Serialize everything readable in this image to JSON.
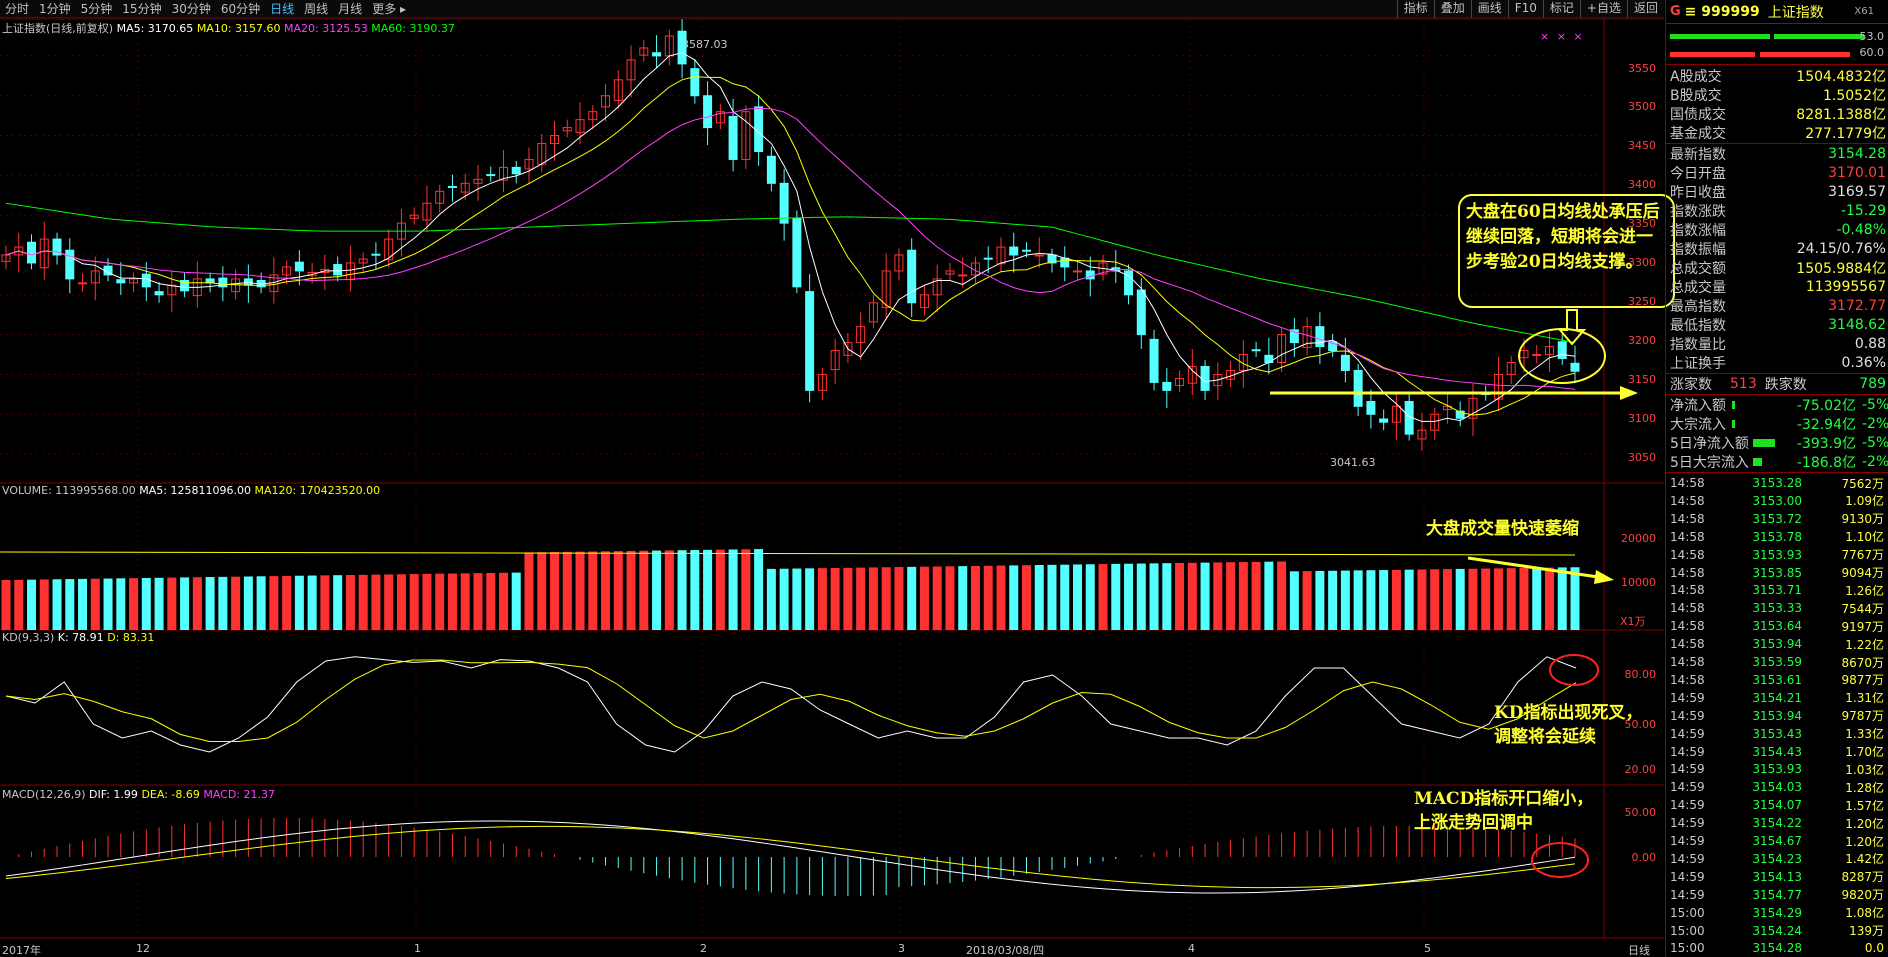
{
  "toolbar": {
    "periods": [
      "分时",
      "1分钟",
      "5分钟",
      "15分钟",
      "30分钟",
      "60分钟",
      "日线",
      "周线",
      "月线",
      "更多 ▸"
    ],
    "active_period": "日线",
    "right_buttons": [
      "指标",
      "叠加",
      "画线",
      "F10",
      "标记",
      "+自选",
      "返回"
    ]
  },
  "main_panel": {
    "title": "上证指数(日线,前复权)",
    "ma5": "MA5: 3170.65",
    "ma10": "MA10: 3157.60",
    "ma20": "MA20: 3125.53",
    "ma60": "MA60: 3190.37",
    "high_label": "3587.03",
    "low_label": "3041.63",
    "y_ticks": [
      "3550",
      "3500",
      "3450",
      "3400",
      "3350",
      "3300",
      "3250",
      "3200",
      "3150",
      "3100",
      "3050"
    ],
    "markers": "× × ×"
  },
  "volume_panel": {
    "title": "VOLUME: 113995568.00",
    "ma5": "MA5: 125811096.00",
    "ma120": "MA120: 170423520.00",
    "y_ticks": [
      "20000",
      "10000"
    ],
    "unit": "X1万"
  },
  "kd_panel": {
    "title": "KD(9,3,3)",
    "k": "K: 78.91",
    "d": "D: 83.31",
    "y_ticks": [
      "80.00",
      "50.00",
      "20.00"
    ]
  },
  "macd_panel": {
    "title": "MACD(12,26,9)",
    "dif": "DIF: 1.99",
    "dea": "DEA: -8.69",
    "macd": "MACD: 21.37",
    "y_ticks": [
      "50.00",
      "0.00"
    ]
  },
  "x_axis": {
    "labels": [
      "2017年",
      "12",
      "1",
      "2",
      "3",
      "2018/03/08/四",
      "4",
      "5"
    ],
    "corner": "日线"
  },
  "annotations": {
    "callout": "大盘在60日均线处承压后继续回落，短期将会进一步考验20日均线支撑。",
    "volume": "大盘成交量快速萎缩",
    "kd_line1": "KD指标出现死叉，",
    "kd_line2": "调整将会延续",
    "macd_line1": "MACD指标开口缩小，",
    "macd_line2": "上涨走势回调中"
  },
  "sidebar": {
    "g": "G",
    "code": "≡ 999999",
    "name": "上证指数",
    "x61": "X61",
    "ratio1": "53.0",
    "ratio2": "60.0",
    "rows": [
      {
        "label": "A股成交",
        "value": "1504.4832亿",
        "color": "#ffff40"
      },
      {
        "label": "B股成交",
        "value": "1.5052亿",
        "color": "#ffff40"
      },
      {
        "label": "国债成交",
        "value": "8281.1388亿",
        "color": "#ffff40"
      },
      {
        "label": "基金成交",
        "value": "277.1779亿",
        "color": "#ffff40"
      },
      {
        "label": "最新指数",
        "value": "3154.28",
        "color": "#20ff40"
      },
      {
        "label": "今日开盘",
        "value": "3170.01",
        "color": "#ff4040"
      },
      {
        "label": "昨日收盘",
        "value": "3169.57",
        "color": "#e0e0e0"
      },
      {
        "label": "指数涨跌",
        "value": "-15.29",
        "color": "#20ff40"
      },
      {
        "label": "指数涨幅",
        "value": "-0.48%",
        "color": "#20ff40"
      },
      {
        "label": "指数振幅",
        "value": "24.15/0.76%",
        "color": "#e0e0e0"
      },
      {
        "label": "总成交额",
        "value": "1505.9884亿",
        "color": "#ffff40"
      },
      {
        "label": "总成交量",
        "value": "113995567",
        "color": "#ffff40"
      },
      {
        "label": "最高指数",
        "value": "3172.77",
        "color": "#ff4040"
      },
      {
        "label": "最低指数",
        "value": "3148.62",
        "color": "#20ff40"
      },
      {
        "label": "指数量比",
        "value": "0.88",
        "color": "#e0e0e0"
      },
      {
        "label": "上证换手",
        "value": "0.36%",
        "color": "#e0e0e0"
      }
    ],
    "up_label": "涨家数",
    "up_value": "513",
    "down_label": "跌家数",
    "down_value": "789",
    "flows": [
      {
        "label": "净流入额",
        "value": "-75.02亿",
        "pct": "-5%"
      },
      {
        "label": "大宗流入",
        "value": "-32.94亿",
        "pct": "-2%"
      },
      {
        "label": "5日净流入额",
        "value": "-393.9亿",
        "pct": "-5%"
      },
      {
        "label": "5日大宗流入",
        "value": "-186.8亿",
        "pct": "-2%"
      }
    ],
    "ticks": [
      {
        "t": "14:58",
        "p": "3153.28",
        "v": "7562万"
      },
      {
        "t": "14:58",
        "p": "3153.00",
        "v": "1.09亿"
      },
      {
        "t": "14:58",
        "p": "3153.72",
        "v": "9130万"
      },
      {
        "t": "14:58",
        "p": "3153.78",
        "v": "1.10亿"
      },
      {
        "t": "14:58",
        "p": "3153.93",
        "v": "7767万"
      },
      {
        "t": "14:58",
        "p": "3153.85",
        "v": "9094万"
      },
      {
        "t": "14:58",
        "p": "3153.71",
        "v": "1.26亿"
      },
      {
        "t": "14:58",
        "p": "3153.33",
        "v": "7544万"
      },
      {
        "t": "14:58",
        "p": "3153.64",
        "v": "9197万"
      },
      {
        "t": "14:58",
        "p": "3153.94",
        "v": "1.22亿"
      },
      {
        "t": "14:58",
        "p": "3153.59",
        "v": "8670万"
      },
      {
        "t": "14:58",
        "p": "3153.61",
        "v": "9877万"
      },
      {
        "t": "14:59",
        "p": "3154.21",
        "v": "1.31亿"
      },
      {
        "t": "14:59",
        "p": "3153.94",
        "v": "9787万"
      },
      {
        "t": "14:59",
        "p": "3153.43",
        "v": "1.33亿"
      },
      {
        "t": "14:59",
        "p": "3154.43",
        "v": "1.70亿"
      },
      {
        "t": "14:59",
        "p": "3153.93",
        "v": "1.03亿"
      },
      {
        "t": "14:59",
        "p": "3154.03",
        "v": "1.28亿"
      },
      {
        "t": "14:59",
        "p": "3154.07",
        "v": "1.57亿"
      },
      {
        "t": "14:59",
        "p": "3154.22",
        "v": "1.20亿"
      },
      {
        "t": "14:59",
        "p": "3154.67",
        "v": "1.20亿"
      },
      {
        "t": "14:59",
        "p": "3154.23",
        "v": "1.42亿"
      },
      {
        "t": "14:59",
        "p": "3154.13",
        "v": "8287万"
      },
      {
        "t": "14:59",
        "p": "3154.77",
        "v": "9820万"
      },
      {
        "t": "15:00",
        "p": "3154.29",
        "v": "1.08亿"
      },
      {
        "t": "15:00",
        "p": "3154.24",
        "v": "139万"
      },
      {
        "t": "15:00",
        "p": "3154.28",
        "v": "0.0"
      }
    ]
  },
  "colors": {
    "up": "#ff3232",
    "down": "#54ffff",
    "ma5": "#ffffff",
    "ma10": "#ffff00",
    "ma20": "#ff40ff",
    "ma60": "#00ff00"
  }
}
